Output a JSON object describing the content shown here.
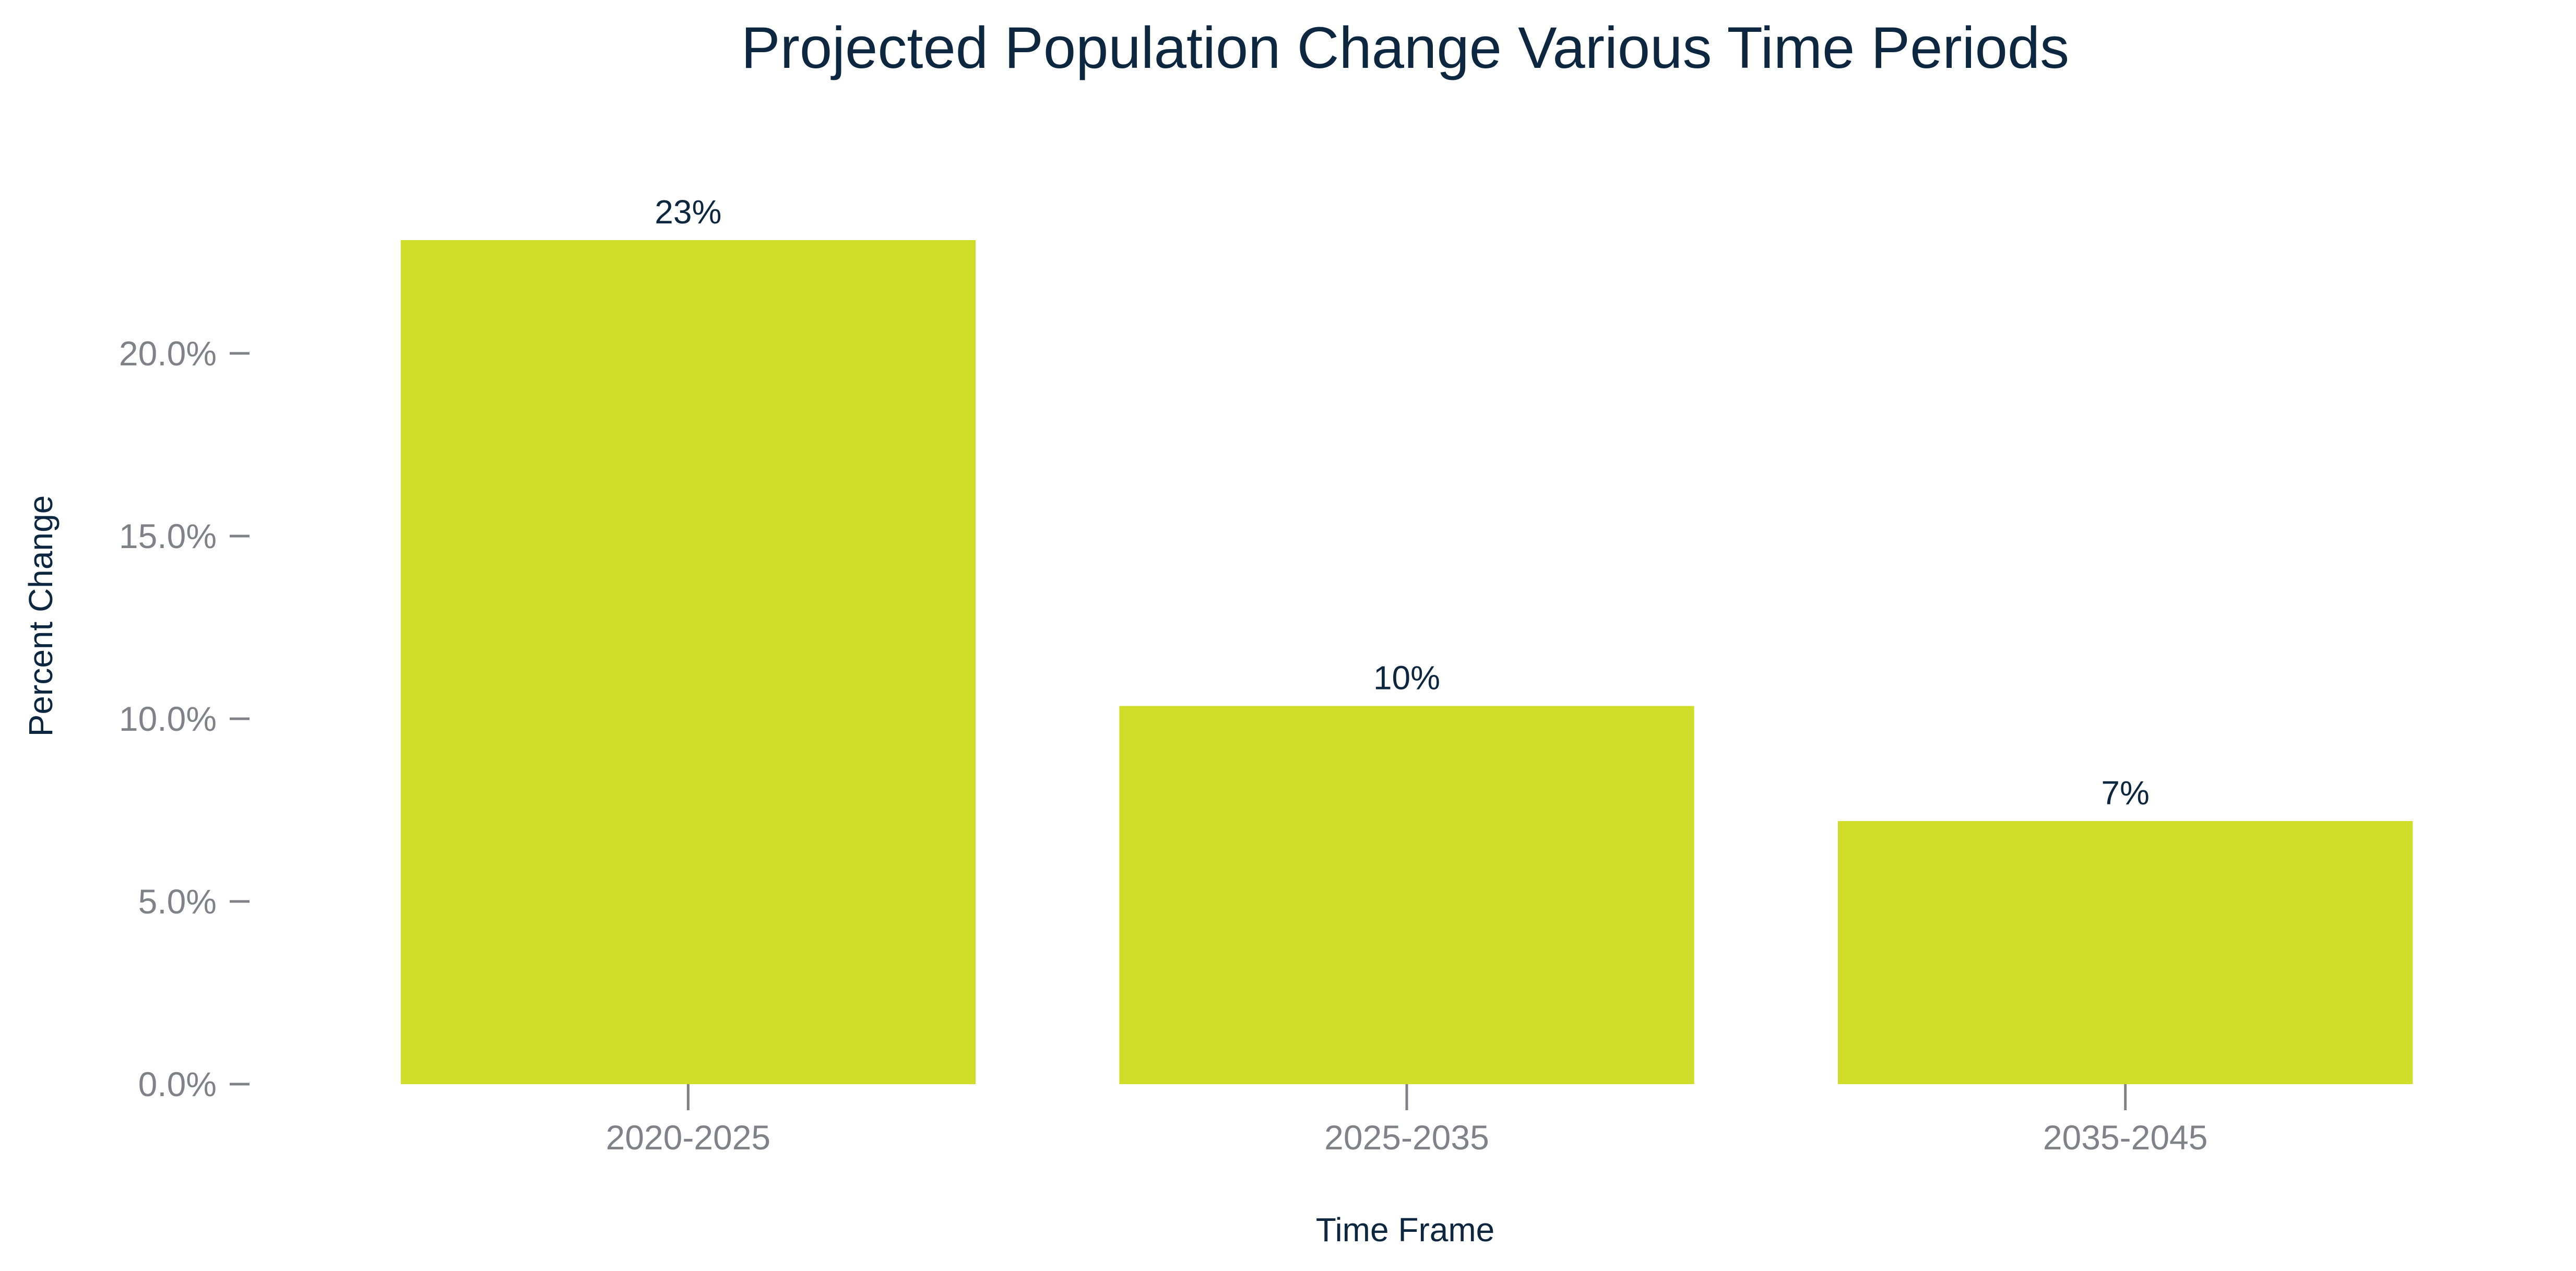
{
  "chart_data": {
    "type": "bar",
    "title": "Projected Population Change Various Time Periods",
    "xlabel": "Time Frame",
    "ylabel": "Percent Change",
    "categories": [
      "2020-2025",
      "2025-2035",
      "2035-2045"
    ],
    "values": [
      23.1,
      10.35,
      7.2
    ],
    "data_labels": [
      "23%",
      "10%",
      "7%"
    ],
    "ylim": [
      0,
      25
    ],
    "yticks": [
      0,
      5,
      10,
      15,
      20
    ],
    "ytick_labels": [
      "0.0%",
      "5.0%",
      "10.0%",
      "15.0%",
      "20.0%"
    ],
    "grid": false,
    "legend": "none",
    "colors": {
      "bar": "#d0de29",
      "title": "#0d2740",
      "axis_label": "#0d2740",
      "data_label": "#0d2740",
      "tick_label": "#7f8388",
      "tick_mark": "#7f8388"
    }
  }
}
